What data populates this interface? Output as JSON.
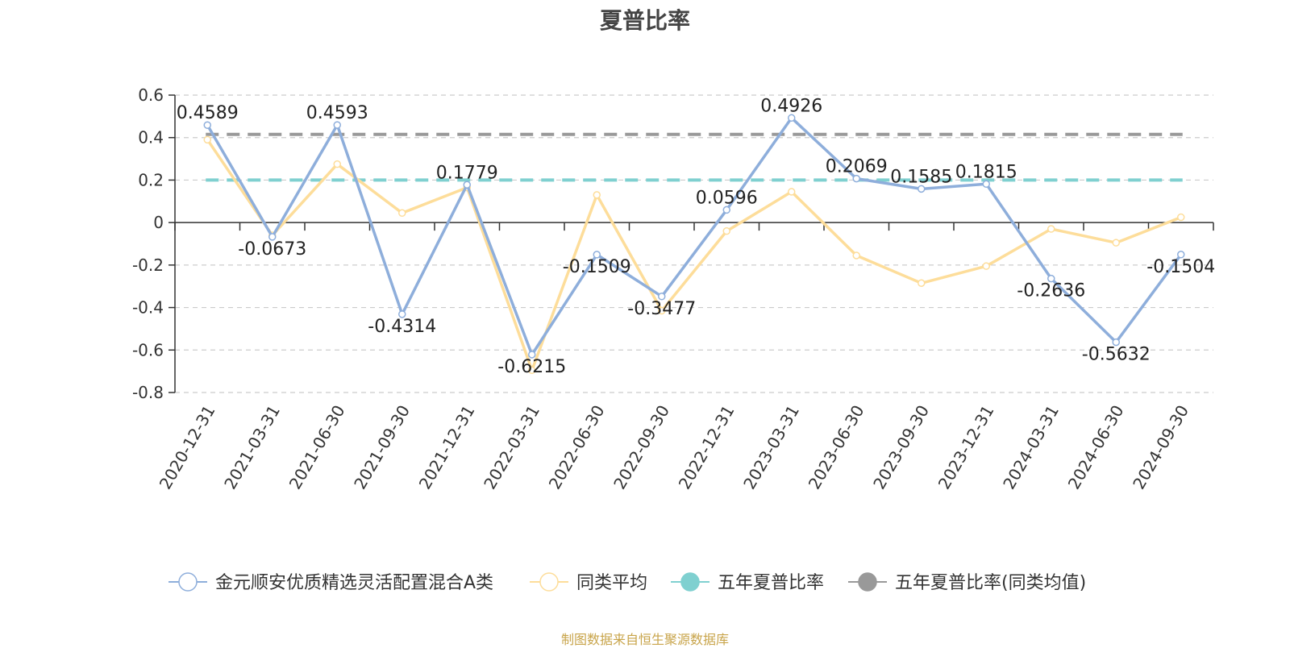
{
  "chart_data": {
    "type": "line",
    "title": "夏普比率",
    "xlabel": "",
    "ylabel": "",
    "ylim": [
      -0.8,
      0.6
    ],
    "yticks": [
      0.6,
      0.4,
      0.2,
      0,
      -0.2,
      -0.4,
      -0.6,
      -0.8
    ],
    "grid": true,
    "legend_position": "bottom",
    "categories": [
      "2020-12-31",
      "2021-03-31",
      "2021-06-30",
      "2021-09-30",
      "2021-12-31",
      "2022-03-31",
      "2022-06-30",
      "2022-09-30",
      "2022-12-31",
      "2023-03-31",
      "2023-06-30",
      "2023-09-30",
      "2023-12-31",
      "2024-03-31",
      "2024-06-30",
      "2024-09-30"
    ],
    "series": [
      {
        "name": "金元顺安优质精选灵活配置混合A类",
        "color": "#8eaedb",
        "values": [
          0.4589,
          -0.0673,
          0.4593,
          -0.4314,
          0.1779,
          -0.6215,
          -0.1509,
          -0.3477,
          0.0596,
          0.4926,
          0.2069,
          0.1585,
          0.1815,
          -0.2636,
          -0.5632,
          -0.1504
        ],
        "data_labels": [
          "0.4589",
          "-0.0673",
          "0.4593",
          "-0.4314",
          "0.1779",
          "-0.6215",
          "-0.1509",
          "-0.3477",
          "0.0596",
          "0.4926",
          "0.2069",
          "0.1585",
          "0.1815",
          "-0.2636",
          "-0.5632",
          "-0.1504"
        ]
      },
      {
        "name": "同类平均",
        "color": "#fddd9a",
        "values": [
          0.39,
          -0.06,
          0.275,
          0.045,
          0.165,
          -0.695,
          0.13,
          -0.415,
          -0.04,
          0.145,
          -0.155,
          -0.285,
          -0.205,
          -0.03,
          -0.095,
          0.025
        ]
      },
      {
        "name": "五年夏普比率",
        "color": "#7fd0d0",
        "reference_value": 0.2
      },
      {
        "name": "五年夏普比率(同类均值)",
        "color": "#999999",
        "reference_value": 0.415
      }
    ]
  },
  "ytick_labels": [
    "0.6",
    "0.4",
    "0.2",
    "0",
    "-0.2",
    "-0.4",
    "-0.6",
    "-0.8"
  ],
  "source_note": "制图数据来自恒生聚源数据库"
}
